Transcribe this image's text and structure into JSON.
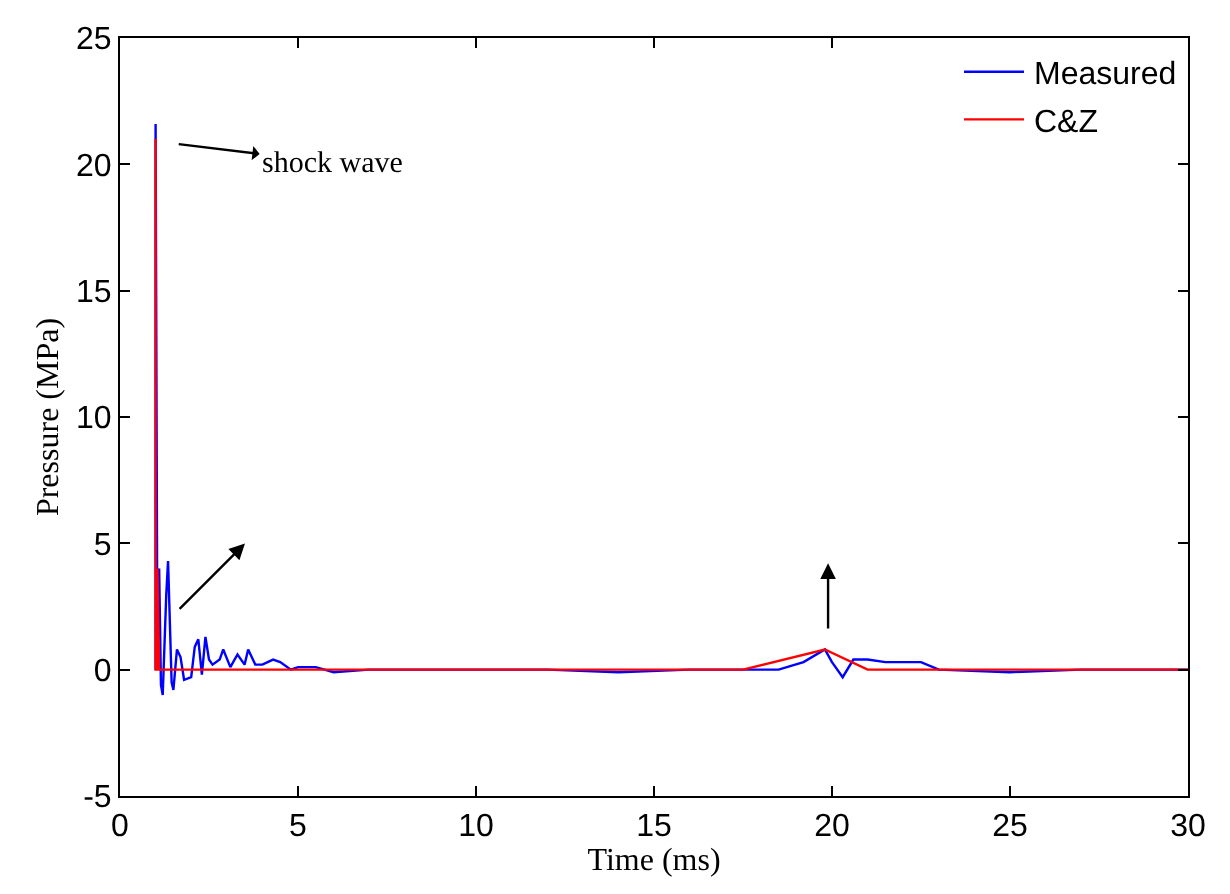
{
  "chart_data": {
    "type": "line",
    "xlabel": "Time (ms)",
    "ylabel": "Pressure (MPa)",
    "xlim": [
      0,
      30
    ],
    "ylim": [
      -5,
      25
    ],
    "xticks": [
      0,
      5,
      10,
      15,
      20,
      25,
      30
    ],
    "yticks": [
      -5,
      0,
      5,
      10,
      15,
      20,
      25
    ],
    "legend": "top right",
    "series": [
      {
        "name": "Measured",
        "color": "#0000ff",
        "x": [
          1.0,
          1.0,
          1.05,
          1.1,
          1.15,
          1.2,
          1.3,
          1.35,
          1.45,
          1.5,
          1.6,
          1.7,
          1.8,
          2.0,
          2.1,
          2.2,
          2.3,
          2.4,
          2.5,
          2.6,
          2.8,
          2.9,
          3.1,
          3.3,
          3.5,
          3.6,
          3.8,
          4.0,
          4.3,
          4.5,
          4.8,
          5.0,
          5.5,
          6.0,
          7.0,
          8.0,
          10.0,
          12.0,
          14.0,
          16.0,
          17.5,
          18.5,
          19.2,
          19.8,
          20.0,
          20.3,
          20.6,
          21.0,
          21.5,
          22.0,
          22.5,
          23.0,
          25.0,
          27.0,
          29.0,
          30.0
        ],
        "values": [
          0,
          21.6,
          0.5,
          4.0,
          -0.6,
          -1.0,
          3.0,
          4.3,
          -0.5,
          -0.8,
          0.8,
          0.5,
          -0.4,
          -0.3,
          0.9,
          1.2,
          -0.2,
          1.3,
          0.4,
          0.2,
          0.4,
          0.8,
          0.1,
          0.6,
          0.2,
          0.8,
          0.2,
          0.2,
          0.4,
          0.3,
          0.0,
          0.1,
          0.1,
          -0.1,
          0.0,
          0.0,
          0.0,
          0.0,
          -0.1,
          0.0,
          0.0,
          0.0,
          0.3,
          0.8,
          0.3,
          -0.3,
          0.4,
          0.4,
          0.3,
          0.3,
          0.3,
          0.0,
          -0.1,
          0.0,
          0.0,
          0.0
        ]
      },
      {
        "name": "C&Z",
        "color": "#ff0000",
        "x": [
          1.0,
          1.0,
          1.0,
          1.05,
          1.05,
          1.1,
          5.0,
          10.0,
          15.0,
          17.5,
          19.8,
          21.0,
          25.0,
          30.0
        ],
        "values": [
          0,
          21.0,
          0,
          0,
          4.0,
          0,
          0,
          0,
          0,
          0,
          0.8,
          0,
          0,
          0
        ]
      }
    ],
    "annotations": [
      "shock wave"
    ]
  }
}
